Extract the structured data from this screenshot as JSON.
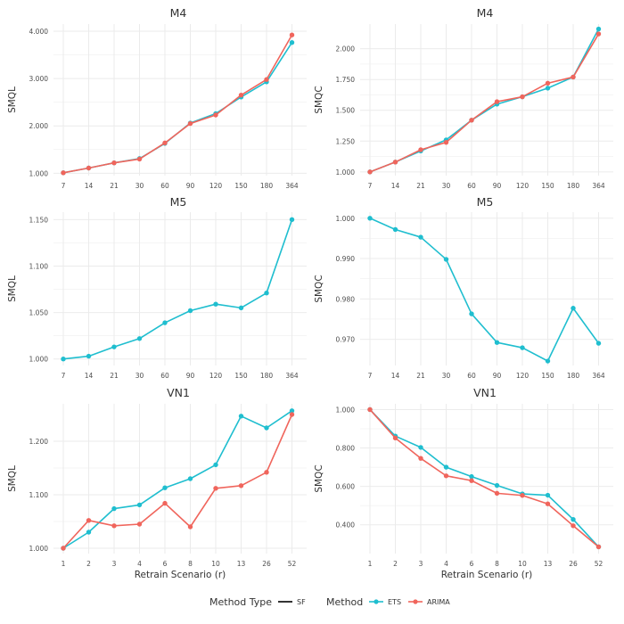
{
  "colors": {
    "ets": "#1fbecf",
    "arima": "#f0655c",
    "grid": "#ebebeb",
    "text": "#333333",
    "tick": "#4d4d4d"
  },
  "chart_data": [
    {
      "type": "line",
      "title": "M4",
      "xlabel": "",
      "ylabel": "SMQL",
      "categories": [
        "7",
        "14",
        "21",
        "30",
        "60",
        "90",
        "120",
        "150",
        "180",
        "364"
      ],
      "ylim": [
        0.95,
        4.15
      ],
      "yticks": [
        1.0,
        2.0,
        3.0,
        4.0
      ],
      "yticklabels": [
        "1.000",
        "2.000",
        "3.000",
        "4.000"
      ],
      "series": [
        {
          "name": "ETS",
          "values": [
            1.01,
            1.11,
            1.22,
            1.31,
            1.63,
            2.06,
            2.26,
            2.61,
            2.93,
            3.76
          ]
        },
        {
          "name": "ARIMA",
          "values": [
            1.01,
            1.11,
            1.22,
            1.3,
            1.64,
            2.05,
            2.23,
            2.65,
            2.98,
            3.92
          ]
        }
      ]
    },
    {
      "type": "line",
      "title": "M4",
      "xlabel": "",
      "ylabel": "SMQC",
      "categories": [
        "7",
        "14",
        "21",
        "30",
        "60",
        "90",
        "120",
        "150",
        "180",
        "364"
      ],
      "ylim": [
        0.97,
        2.2
      ],
      "yticks": [
        1.0,
        1.25,
        1.5,
        1.75,
        2.0
      ],
      "yticklabels": [
        "1.000",
        "1.250",
        "1.500",
        "1.750",
        "2.000"
      ],
      "series": [
        {
          "name": "ETS",
          "values": [
            1.0,
            1.08,
            1.17,
            1.26,
            1.42,
            1.55,
            1.61,
            1.68,
            1.77,
            2.16
          ]
        },
        {
          "name": "ARIMA",
          "values": [
            1.0,
            1.08,
            1.18,
            1.24,
            1.42,
            1.57,
            1.61,
            1.72,
            1.77,
            2.12
          ]
        }
      ]
    },
    {
      "type": "line",
      "title": "M5",
      "xlabel": "",
      "ylabel": "SMQL",
      "categories": [
        "7",
        "14",
        "21",
        "30",
        "60",
        "90",
        "120",
        "150",
        "180",
        "364"
      ],
      "ylim": [
        0.993,
        1.158
      ],
      "yticks": [
        1.0,
        1.05,
        1.1,
        1.15
      ],
      "yticklabels": [
        "1.000",
        "1.050",
        "1.100",
        "1.150"
      ],
      "series": [
        {
          "name": "ETS",
          "values": [
            1.0,
            1.003,
            1.013,
            1.022,
            1.039,
            1.052,
            1.059,
            1.055,
            1.071,
            1.15
          ]
        }
      ]
    },
    {
      "type": "line",
      "title": "M5",
      "xlabel": "",
      "ylabel": "SMQC",
      "categories": [
        "7",
        "14",
        "21",
        "30",
        "60",
        "90",
        "120",
        "150",
        "180",
        "364"
      ],
      "ylim": [
        0.9635,
        1.0015
      ],
      "yticks": [
        0.97,
        0.98,
        0.99,
        1.0
      ],
      "yticklabels": [
        "0.970",
        "0.980",
        "0.990",
        "1.000"
      ],
      "series": [
        {
          "name": "ETS",
          "values": [
            1.0,
            0.9972,
            0.9953,
            0.9898,
            0.9763,
            0.9692,
            0.9679,
            0.9646,
            0.9777,
            0.969
          ]
        }
      ]
    },
    {
      "type": "line",
      "title": "VN1",
      "xlabel": "Retrain Scenario (r)",
      "ylabel": "SMQL",
      "categories": [
        "1",
        "2",
        "3",
        "4",
        "6",
        "8",
        "10",
        "13",
        "26",
        "52"
      ],
      "ylim": [
        0.99,
        1.27
      ],
      "yticks": [
        1.0,
        1.1,
        1.2
      ],
      "yticklabels": [
        "1.000",
        "1.100",
        "1.200"
      ],
      "series": [
        {
          "name": "ETS",
          "values": [
            1.0,
            1.03,
            1.074,
            1.081,
            1.113,
            1.13,
            1.156,
            1.247,
            1.225,
            1.257
          ]
        },
        {
          "name": "ARIMA",
          "values": [
            1.0,
            1.052,
            1.042,
            1.045,
            1.084,
            1.04,
            1.112,
            1.117,
            1.142,
            1.25
          ]
        }
      ]
    },
    {
      "type": "line",
      "title": "VN1",
      "xlabel": "Retrain Scenario (r)",
      "ylabel": "SMQC",
      "categories": [
        "1",
        "2",
        "3",
        "4",
        "6",
        "8",
        "10",
        "13",
        "26",
        "52"
      ],
      "ylim": [
        0.25,
        1.03
      ],
      "yticks": [
        0.4,
        0.6,
        0.8,
        1.0
      ],
      "yticklabels": [
        "0.400",
        "0.600",
        "0.800",
        "1.000"
      ],
      "series": [
        {
          "name": "ETS",
          "values": [
            1.0,
            0.862,
            0.803,
            0.7,
            0.651,
            0.605,
            0.561,
            0.554,
            0.428,
            0.285
          ]
        },
        {
          "name": "ARIMA",
          "values": [
            1.0,
            0.852,
            0.746,
            0.655,
            0.63,
            0.564,
            0.553,
            0.509,
            0.395,
            0.285
          ]
        }
      ]
    }
  ],
  "legend": {
    "method_type_title": "Method Type",
    "method_type_entries": [
      "SF"
    ],
    "method_title": "Method",
    "method_entries": [
      "ETS",
      "ARIMA"
    ]
  }
}
